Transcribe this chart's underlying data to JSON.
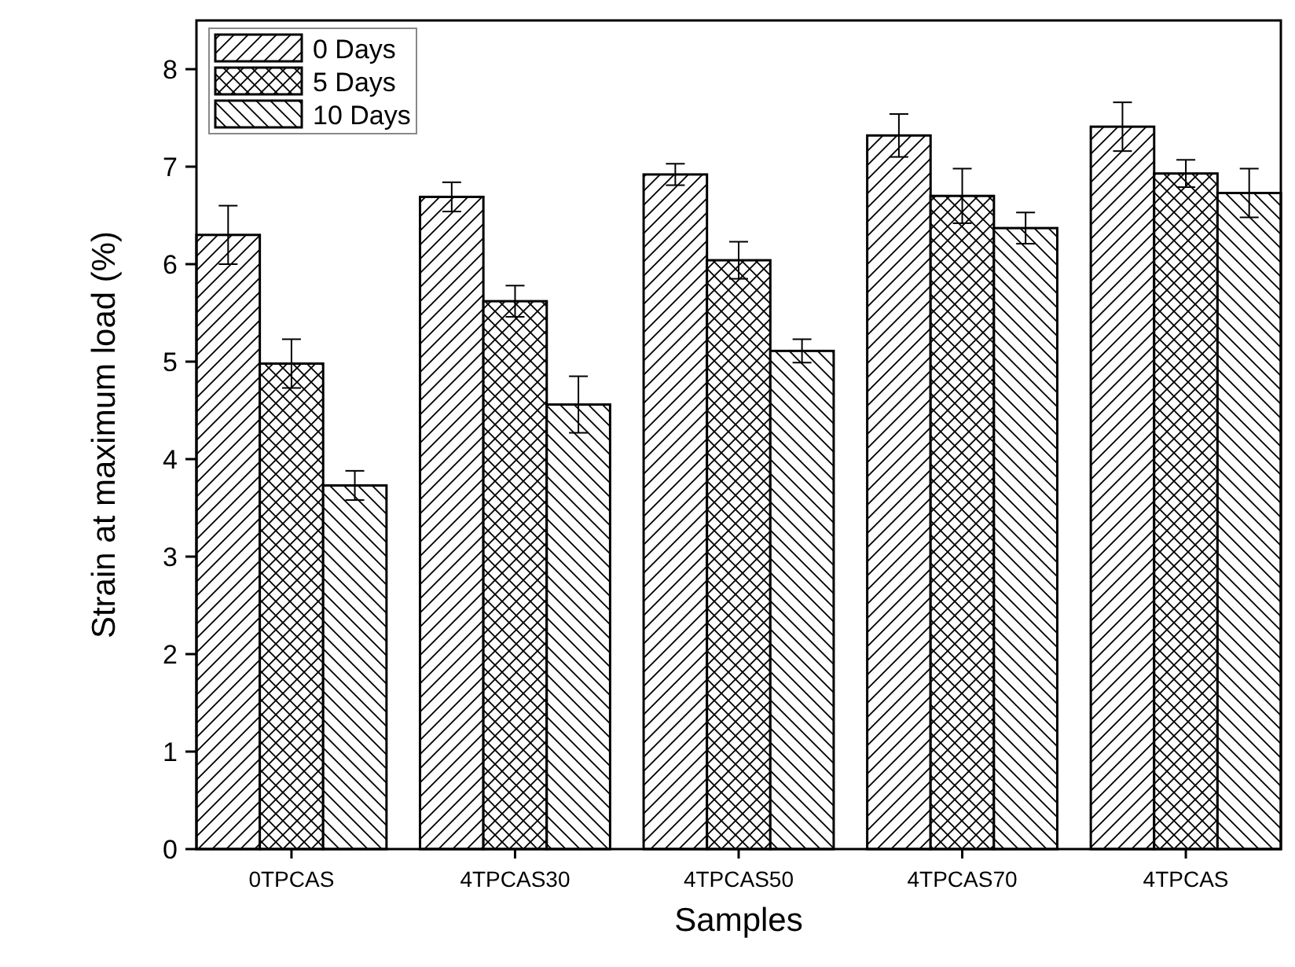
{
  "chart_data": {
    "type": "bar",
    "xlabel": "Samples",
    "ylabel": "Strain at maximum load (%)",
    "categories": [
      "0TPCAS",
      "4TPCAS30",
      "4TPCAS50",
      "4TPCAS70",
      "4TPCAS"
    ],
    "series": [
      {
        "name": "0 Days",
        "color": "#000000",
        "values": [
          6.3,
          6.69,
          6.92,
          7.32,
          7.41
        ],
        "errors": [
          0.3,
          0.15,
          0.11,
          0.22,
          0.25
        ]
      },
      {
        "name": "5 Days",
        "color": "#000000",
        "values": [
          4.98,
          5.62,
          6.04,
          6.7,
          6.93
        ],
        "errors": [
          0.25,
          0.16,
          0.19,
          0.28,
          0.14
        ]
      },
      {
        "name": "10 Days",
        "color": "#000000",
        "values": [
          3.73,
          4.56,
          5.11,
          6.37,
          6.73
        ],
        "errors": [
          0.15,
          0.29,
          0.12,
          0.16,
          0.25
        ]
      }
    ],
    "ylim": [
      0,
      8.5
    ],
    "yticks": [
      0,
      1,
      2,
      3,
      4,
      5,
      6,
      7,
      8
    ],
    "legend": "top left",
    "grid": false
  }
}
